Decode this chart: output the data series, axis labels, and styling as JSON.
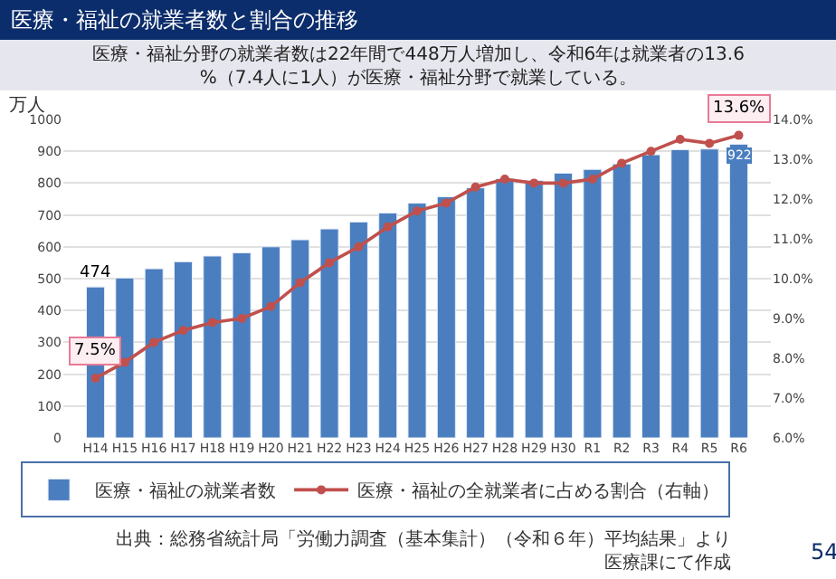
{
  "chart_data": {
    "type": "bar",
    "title": "医療・福祉の就業者数と割合の推移",
    "subtitle": "医療・福祉分野の就業者数は22年間で448万人増加し、令和6年は就業者の13.6%（7.4人に1人）が医療・福祉分野で就業している。",
    "ylabel": "万人",
    "categories": [
      "H14",
      "H15",
      "H16",
      "H17",
      "H18",
      "H19",
      "H20",
      "H21",
      "H22",
      "H23",
      "H24",
      "H25",
      "H26",
      "H27",
      "H28",
      "H29",
      "H30",
      "R1",
      "R2",
      "R3",
      "R4",
      "R5",
      "R6"
    ],
    "series": [
      {
        "name": "医療・福祉の就業者数",
        "color": "#4a7ebf",
        "values": [
          474,
          502,
          531,
          553,
          571,
          581,
          600,
          622,
          656,
          678,
          706,
          737,
          757,
          785,
          814,
          808,
          831,
          843,
          860,
          889,
          905,
          907,
          922
        ],
        "value_labels": [
          "474",
          null,
          null,
          null,
          null,
          null,
          null,
          null,
          null,
          null,
          null,
          null,
          null,
          null,
          null,
          null,
          null,
          null,
          null,
          null,
          null,
          null,
          "922"
        ]
      },
      {
        "name": "医療・福祉の全就業者に占める割合（右軸）",
        "type": "line",
        "axis": "y2",
        "color": "#c0504d",
        "marker": "circle",
        "values": [
          7.5,
          7.9,
          8.4,
          8.7,
          8.9,
          9.0,
          9.3,
          9.9,
          10.4,
          10.8,
          11.3,
          11.7,
          11.9,
          12.3,
          12.5,
          12.4,
          12.4,
          12.5,
          12.9,
          13.2,
          13.5,
          13.4,
          13.6
        ],
        "value_labels": [
          "7.5%",
          null,
          null,
          null,
          null,
          null,
          null,
          null,
          null,
          null,
          null,
          null,
          null,
          null,
          null,
          null,
          null,
          null,
          null,
          null,
          null,
          null,
          "13.6%"
        ]
      }
    ],
    "ylim": [
      0,
      1000
    ],
    "yticks": [
      0,
      100,
      200,
      300,
      400,
      500,
      600,
      700,
      800,
      900,
      1000
    ],
    "y2lim": [
      6,
      14
    ],
    "y2ticks": [
      {
        "value": 6,
        "label": "6.0%"
      },
      {
        "value": 7,
        "label": "7.0%"
      },
      {
        "value": 8,
        "label": "8.0%"
      },
      {
        "value": 9,
        "label": "9.0%"
      },
      {
        "value": 10,
        "label": "10.0%"
      },
      {
        "value": 11,
        "label": "11.0%"
      },
      {
        "value": 12,
        "label": "12.0%"
      },
      {
        "value": 13,
        "label": "13.0%"
      },
      {
        "value": 14,
        "label": "14.0%"
      }
    ],
    "grid": "y",
    "legend": "bottom",
    "annotations": [
      "出典：総務省統計局「労働力調査（基本集計）（令和６年）平均結果」より医療課にて作成",
      "54"
    ]
  }
}
